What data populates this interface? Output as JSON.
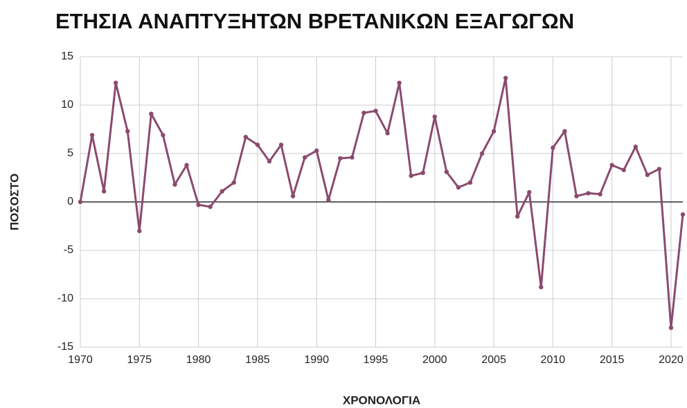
{
  "chart_data": {
    "type": "line",
    "title": "ΕΤΗΣΙΑ ΑΝΑΠΤΥΞΗΤΩΝ ΒΡΕΤΑΝΙΚΩΝ ΕΞΑΓΩΓΩΝ",
    "x_label": "ΧΡΟΝΟΛΟΓΙΑ",
    "y_label": "ΠΟΣΟΣΤΟ",
    "x": [
      1970,
      1971,
      1972,
      1973,
      1974,
      1975,
      1976,
      1977,
      1978,
      1979,
      1980,
      1981,
      1982,
      1983,
      1984,
      1985,
      1986,
      1987,
      1988,
      1989,
      1990,
      1991,
      1992,
      1993,
      1994,
      1995,
      1996,
      1997,
      1998,
      1999,
      2000,
      2001,
      2002,
      2003,
      2004,
      2005,
      2006,
      2007,
      2008,
      2009,
      2010,
      2011,
      2012,
      2013,
      2014,
      2015,
      2016,
      2017,
      2018,
      2019,
      2020,
      2021
    ],
    "series": [
      {
        "name": "ΠΟΣΟΣΤΟ",
        "color": "#8b4a6e",
        "values": [
          0.0,
          6.9,
          1.1,
          12.3,
          7.3,
          -3.0,
          9.1,
          6.9,
          1.8,
          3.8,
          -0.3,
          -0.5,
          1.1,
          2.0,
          6.7,
          5.9,
          4.2,
          5.9,
          0.6,
          4.6,
          5.3,
          0.2,
          4.5,
          4.6,
          9.2,
          9.4,
          7.1,
          12.3,
          2.7,
          3.0,
          8.8,
          3.1,
          1.5,
          2.0,
          5.0,
          7.3,
          12.8,
          -1.5,
          1.0,
          -8.8,
          5.6,
          7.3,
          0.6,
          0.9,
          0.8,
          3.8,
          3.3,
          5.7,
          2.8,
          3.4,
          -13.0,
          -1.3
        ]
      }
    ],
    "xlim": [
      1970,
      2021
    ],
    "xticks": [
      1970,
      1975,
      1980,
      1985,
      1990,
      1995,
      2000,
      2005,
      2010,
      2015,
      2020
    ],
    "ylim": [
      -15,
      15
    ],
    "yticks": [
      -15,
      -10,
      -5,
      0,
      5,
      10,
      15
    ],
    "grid": true
  }
}
